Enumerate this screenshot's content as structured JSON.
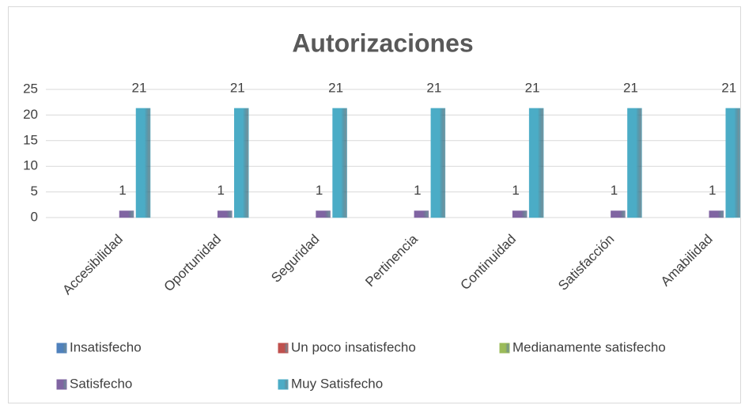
{
  "chart_data": {
    "type": "bar",
    "title": "Autorizaciones",
    "categories": [
      "Accesibilidad",
      "Oportunidad",
      "Seguridad",
      "Pertinencia",
      "Continuidad",
      "Satisfacción",
      "Amabilidad"
    ],
    "series": [
      {
        "name": "Insatisfecho",
        "color": "#4f81bd",
        "values": [
          null,
          null,
          null,
          null,
          null,
          null,
          null
        ]
      },
      {
        "name": "Un poco insatisfecho",
        "color": "#c0504d",
        "values": [
          null,
          null,
          null,
          null,
          null,
          null,
          null
        ]
      },
      {
        "name": "Medianamente satisfecho",
        "color": "#9bbb59",
        "values": [
          null,
          null,
          null,
          null,
          null,
          null,
          null
        ]
      },
      {
        "name": "Satisfecho",
        "color": "#8064a2",
        "values": [
          1,
          1,
          1,
          1,
          1,
          1,
          1
        ]
      },
      {
        "name": "Muy Satisfecho",
        "color": "#4bacc6",
        "values": [
          21,
          21,
          21,
          21,
          21,
          21,
          21
        ]
      }
    ],
    "ylim": [
      0,
      25
    ],
    "yticks": [
      0,
      5,
      10,
      15,
      20,
      25
    ],
    "grid": true,
    "legend": "bottom"
  }
}
